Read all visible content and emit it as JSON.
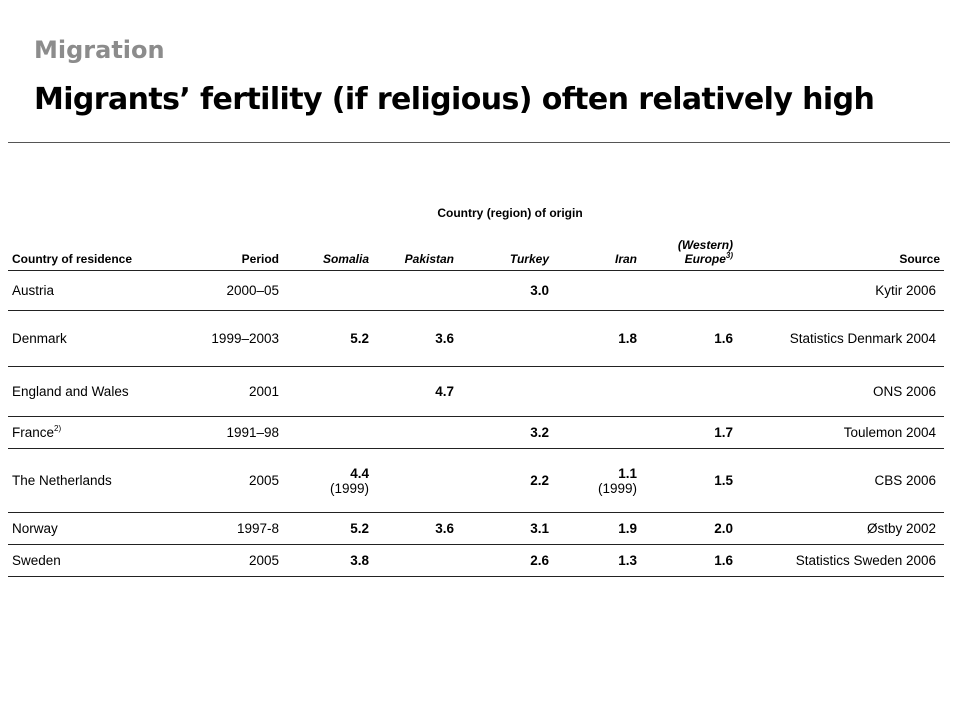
{
  "header": {
    "subtitle": "Migration",
    "title": "Migrants’ fertility (if religious) often relatively high"
  },
  "table": {
    "group_header": "Country (region) of origin",
    "columns": {
      "residence": "Country of residence",
      "period": "Period",
      "somalia": "Somalia",
      "pakistan": "Pakistan",
      "turkey": "Turkey",
      "iran": "Iran",
      "europe": "(Western) Europe",
      "europe_sup": "3)",
      "source": "Source"
    },
    "rows": [
      {
        "country": "Austria",
        "country_sup": "",
        "period": "2000–05",
        "somalia": "",
        "somalia_note": "",
        "pakistan": "",
        "turkey": "3.0",
        "iran": "",
        "iran_note": "",
        "europe": "",
        "source": "Kytir 2006"
      },
      {
        "country": "Denmark",
        "country_sup": "",
        "period": "1999–2003",
        "somalia": "5.2",
        "somalia_note": "",
        "pakistan": "3.6",
        "turkey": "",
        "iran": "1.8",
        "iran_note": "",
        "europe": "1.6",
        "source": "Statistics Denmark 2004"
      },
      {
        "country": "England and Wales",
        "country_sup": "",
        "period": "2001",
        "somalia": "",
        "somalia_note": "",
        "pakistan": "4.7",
        "turkey": "",
        "iran": "",
        "iran_note": "",
        "europe": "",
        "source": "ONS 2006"
      },
      {
        "country": "France",
        "country_sup": "2)",
        "period": "1991–98",
        "somalia": "",
        "somalia_note": "",
        "pakistan": "",
        "turkey": "3.2",
        "iran": "",
        "iran_note": "",
        "europe": "1.7",
        "source": "Toulemon 2004"
      },
      {
        "country": "The Netherlands",
        "country_sup": "",
        "period": "2005",
        "somalia": "4.4",
        "somalia_note": "(1999)",
        "pakistan": "",
        "turkey": "2.2",
        "iran": "1.1",
        "iran_note": "(1999)",
        "europe": "1.5",
        "source": "CBS 2006"
      },
      {
        "country": "Norway",
        "country_sup": "",
        "period": "1997-8",
        "somalia": "5.2",
        "somalia_note": "",
        "pakistan": "3.6",
        "turkey": "3.1",
        "iran": "1.9",
        "iran_note": "",
        "europe": "2.0",
        "source": "Østby 2002"
      },
      {
        "country": "Sweden",
        "country_sup": "",
        "period": "2005",
        "somalia": "3.8",
        "somalia_note": "",
        "pakistan": "",
        "turkey": "2.6",
        "iran": "1.3",
        "iran_note": "",
        "europe": "1.6",
        "source": "Statistics Sweden 2006"
      }
    ]
  }
}
